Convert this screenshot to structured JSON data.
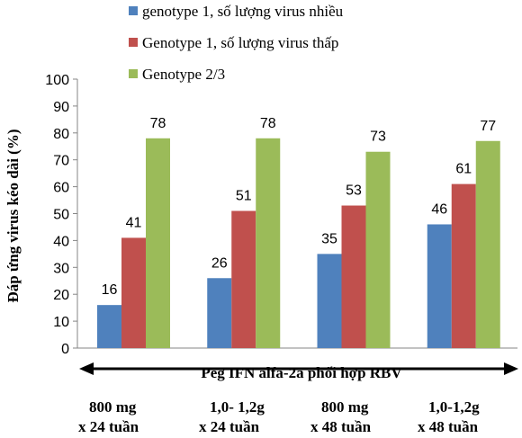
{
  "chart_data": {
    "type": "bar",
    "title": "",
    "xlabel": "Peg IFN alfa-2a phối hợp RBV",
    "ylabel": "Đáp ứng virus kéo dài (%)",
    "ylim": [
      0,
      100
    ],
    "yticks": [
      0,
      10,
      20,
      30,
      40,
      50,
      60,
      70,
      80,
      90,
      100
    ],
    "grid": false,
    "legend_position": "top",
    "categories": [
      [
        "800 mg",
        "x 24 tuần"
      ],
      [
        "1,0- 1,2g",
        "x 24 tuần"
      ],
      [
        "800 mg",
        "x 48 tuần"
      ],
      [
        "1,0-1,2g",
        "x 48 tuần"
      ]
    ],
    "series": [
      {
        "name": "genotype 1, số lượng virus nhiều",
        "color": "#4F81BD",
        "values": [
          16,
          26,
          35,
          46
        ]
      },
      {
        "name": "Genotype 1, số lượng virus thấp",
        "color": "#C0504D",
        "values": [
          41,
          51,
          53,
          61
        ]
      },
      {
        "name": "Genotype 2/3",
        "color": "#9BBB59",
        "values": [
          78,
          78,
          73,
          77
        ]
      }
    ]
  }
}
